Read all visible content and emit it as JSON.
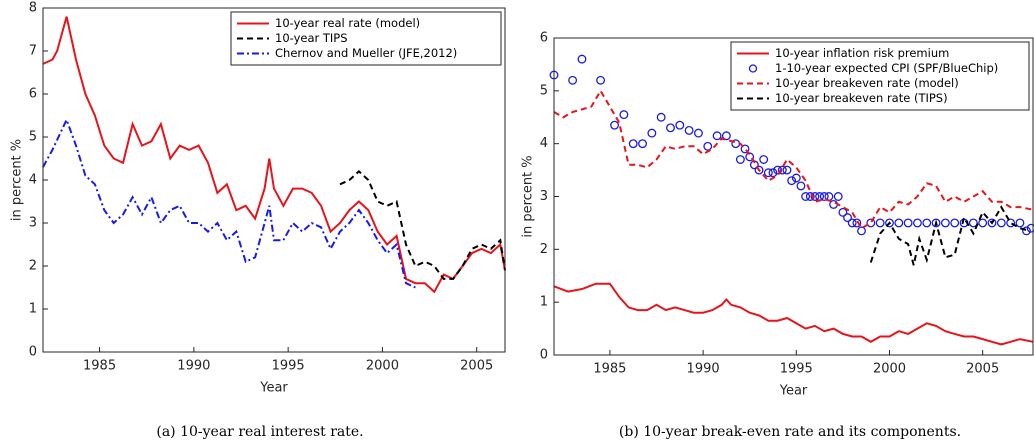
{
  "chart_data": [
    {
      "type": "line",
      "caption": "(a)  10-year real interest rate.",
      "xlabel": "Year",
      "ylabel": "in percent %",
      "xlim": [
        1982,
        2006.5
      ],
      "xticks": [
        1985,
        1990,
        1995,
        2000,
        2005
      ],
      "ylim": [
        0,
        8
      ],
      "yticks": [
        0,
        1,
        2,
        3,
        4,
        5,
        6,
        7,
        8
      ],
      "legend": "northeast",
      "series": [
        {
          "name": "10-year real rate (model)",
          "color": "#e8141b",
          "style": "solid",
          "x": [
            1982,
            1982.5,
            1982.75,
            1983.25,
            1983.75,
            1984.25,
            1984.75,
            1985.25,
            1985.75,
            1986.25,
            1986.75,
            1987.25,
            1987.75,
            1988.25,
            1988.75,
            1989.25,
            1989.75,
            1990.25,
            1990.75,
            1991.25,
            1991.75,
            1992.25,
            1992.75,
            1993.25,
            1993.75,
            1994,
            1994.25,
            1994.75,
            1995.25,
            1995.75,
            1996.25,
            1996.75,
            1997.25,
            1997.75,
            1998.25,
            1998.75,
            1999.25,
            1999.75,
            2000.25,
            2000.75,
            2001.25,
            2001.75,
            2002.25,
            2002.75,
            2003.25,
            2003.75,
            2004.25,
            2004.75,
            2005.25,
            2005.75,
            2006.25,
            2006.5
          ],
          "values": [
            6.7,
            6.8,
            7.0,
            7.8,
            6.8,
            6.0,
            5.5,
            4.8,
            4.5,
            4.4,
            5.3,
            4.8,
            4.9,
            5.3,
            4.5,
            4.8,
            4.7,
            4.8,
            4.4,
            3.7,
            3.9,
            3.3,
            3.4,
            3.1,
            3.8,
            4.5,
            3.8,
            3.4,
            3.8,
            3.8,
            3.7,
            3.4,
            2.8,
            3.0,
            3.3,
            3.5,
            3.3,
            2.8,
            2.5,
            2.7,
            1.7,
            1.6,
            1.6,
            1.4,
            1.8,
            1.7,
            2.0,
            2.3,
            2.4,
            2.3,
            2.5,
            1.9
          ]
        },
        {
          "name": "10-year TIPS",
          "color": "#000000",
          "style": "dashed",
          "x": [
            1997.75,
            1998.25,
            1998.75,
            1999.25,
            1999.75,
            2000.25,
            2000.75,
            2001.25,
            2001.75,
            2002.25,
            2002.75,
            2003.25,
            2003.75,
            2004.25,
            2004.75,
            2005.25,
            2005.75,
            2006.25,
            2006.5
          ],
          "values": [
            3.9,
            4.0,
            4.2,
            4.0,
            3.5,
            3.4,
            3.5,
            2.5,
            2.0,
            2.1,
            2.0,
            1.7,
            1.7,
            2.0,
            2.4,
            2.5,
            2.4,
            2.6,
            1.9
          ]
        },
        {
          "name": "Chernov and Mueller (JFE,2012)",
          "color": "#1a1aeb",
          "style": "dashdot",
          "x": [
            1982,
            1982.5,
            1983.25,
            1983.75,
            1984.25,
            1984.75,
            1985.25,
            1985.75,
            1986.25,
            1986.75,
            1987.25,
            1987.75,
            1988.25,
            1988.75,
            1989.25,
            1989.75,
            1990.25,
            1990.75,
            1991.25,
            1991.75,
            1992.25,
            1992.75,
            1993.25,
            1993.75,
            1994,
            1994.25,
            1994.75,
            1995.25,
            1995.75,
            1996.25,
            1996.75,
            1997.25,
            1997.75,
            1998.25,
            1998.75,
            1999.25,
            1999.75,
            2000.25,
            2000.75,
            2001.25,
            2001.75
          ],
          "values": [
            4.3,
            4.7,
            5.4,
            4.8,
            4.1,
            3.9,
            3.3,
            3.0,
            3.2,
            3.6,
            3.2,
            3.6,
            3.0,
            3.3,
            3.4,
            3.0,
            3.0,
            2.8,
            3.0,
            2.6,
            2.8,
            2.1,
            2.2,
            3.0,
            3.4,
            2.6,
            2.6,
            3.0,
            2.8,
            3.0,
            2.9,
            2.4,
            2.8,
            3.0,
            3.3,
            3.0,
            2.6,
            2.3,
            2.5,
            1.6,
            1.5
          ]
        }
      ]
    },
    {
      "type": "line",
      "caption": "(b)  10-year break-even rate and its components.",
      "xlabel": "Year",
      "ylabel": "in percent %",
      "xlim": [
        1982,
        2007.7
      ],
      "xticks": [
        1985,
        1990,
        1995,
        2000,
        2005
      ],
      "ylim": [
        0,
        6
      ],
      "yticks": [
        0,
        1,
        2,
        3,
        4,
        5,
        6
      ],
      "legend": "northeast",
      "series": [
        {
          "name": "10-year inflation risk premium",
          "color": "#e8141b",
          "style": "solid",
          "x": [
            1982,
            1982.75,
            1983.5,
            1984.25,
            1985,
            1985.5,
            1986,
            1986.5,
            1987,
            1987.5,
            1988,
            1988.5,
            1989,
            1989.5,
            1990,
            1990.5,
            1991,
            1991.25,
            1991.5,
            1992,
            1992.5,
            1993,
            1993.5,
            1994,
            1994.5,
            1995,
            1995.5,
            1996,
            1996.5,
            1997,
            1997.5,
            1998,
            1998.5,
            1999,
            1999.5,
            2000,
            2000.5,
            2001,
            2001.5,
            2002,
            2002.5,
            2003,
            2003.5,
            2004,
            2004.5,
            2005,
            2005.5,
            2006,
            2006.5,
            2007,
            2007.7
          ],
          "values": [
            1.3,
            1.2,
            1.25,
            1.35,
            1.35,
            1.1,
            0.9,
            0.85,
            0.85,
            0.95,
            0.85,
            0.9,
            0.85,
            0.8,
            0.8,
            0.85,
            0.95,
            1.05,
            0.95,
            0.9,
            0.8,
            0.75,
            0.65,
            0.65,
            0.7,
            0.6,
            0.5,
            0.55,
            0.45,
            0.5,
            0.4,
            0.35,
            0.35,
            0.25,
            0.35,
            0.35,
            0.45,
            0.4,
            0.5,
            0.6,
            0.55,
            0.45,
            0.4,
            0.35,
            0.35,
            0.3,
            0.25,
            0.2,
            0.25,
            0.3,
            0.25
          ]
        },
        {
          "name": "1-10-year expected CPI (SPF/BlueChip)",
          "color": "#1a1aeb",
          "style": "markers",
          "x": [
            1982,
            1983,
            1983.5,
            1984.5,
            1985.25,
            1985.75,
            1986.25,
            1986.75,
            1987.25,
            1987.75,
            1988.25,
            1988.75,
            1989.25,
            1989.75,
            1990.25,
            1990.75,
            1991.25,
            1991.75,
            1992,
            1992.25,
            1992.5,
            1992.75,
            1993,
            1993.25,
            1993.5,
            1993.75,
            1994,
            1994.25,
            1994.5,
            1994.75,
            1995,
            1995.25,
            1995.5,
            1995.75,
            1996,
            1996.25,
            1996.5,
            1996.75,
            1997,
            1997.25,
            1997.5,
            1997.75,
            1998,
            1998.25,
            1998.5,
            1999,
            1999.5,
            2000,
            2000.5,
            2001,
            2001.5,
            2002,
            2002.5,
            2003,
            2003.5,
            2004,
            2004.5,
            2005,
            2005.5,
            2006,
            2006.5,
            2007,
            2007.35,
            2007.6
          ],
          "values": [
            5.3,
            5.2,
            5.6,
            5.2,
            4.35,
            4.55,
            4.0,
            4.0,
            4.2,
            4.5,
            4.3,
            4.35,
            4.25,
            4.2,
            3.95,
            4.15,
            4.15,
            4.0,
            3.7,
            3.9,
            3.75,
            3.6,
            3.5,
            3.7,
            3.45,
            3.45,
            3.5,
            3.5,
            3.5,
            3.3,
            3.35,
            3.2,
            3.0,
            3.0,
            3.0,
            3.0,
            3.0,
            3.0,
            2.85,
            3.0,
            2.7,
            2.6,
            2.5,
            2.5,
            2.35,
            2.5,
            2.5,
            2.5,
            2.5,
            2.5,
            2.5,
            2.5,
            2.5,
            2.5,
            2.5,
            2.5,
            2.5,
            2.5,
            2.5,
            2.5,
            2.5,
            2.5,
            2.35,
            2.4
          ]
        },
        {
          "name": "10-year breakeven rate (model)",
          "color": "#e8141b",
          "style": "dashed",
          "x": [
            1982,
            1982.5,
            1983,
            1984,
            1984.5,
            1985,
            1985.5,
            1986,
            1986.5,
            1987,
            1987.5,
            1988,
            1988.5,
            1989,
            1989.5,
            1990,
            1990.5,
            1991,
            1991.5,
            1992,
            1992.5,
            1993,
            1993.5,
            1994,
            1994.5,
            1995,
            1995.5,
            1996,
            1996.5,
            1997,
            1997.5,
            1998,
            1998.5,
            1999,
            1999.5,
            2000,
            2000.5,
            2001,
            2001.5,
            2002,
            2002.5,
            2003,
            2003.5,
            2004,
            2004.5,
            2005,
            2005.5,
            2006,
            2006.5,
            2007,
            2007.7
          ],
          "values": [
            4.6,
            4.5,
            4.6,
            4.7,
            5.0,
            4.7,
            4.4,
            3.6,
            3.6,
            3.55,
            3.7,
            3.95,
            3.9,
            3.95,
            3.95,
            3.8,
            3.9,
            4.1,
            4.05,
            4.0,
            3.8,
            3.5,
            3.3,
            3.4,
            3.7,
            3.55,
            3.3,
            2.9,
            2.95,
            2.9,
            2.8,
            2.7,
            2.4,
            2.5,
            2.8,
            2.7,
            2.9,
            2.85,
            3.0,
            3.25,
            3.2,
            2.9,
            3.0,
            2.9,
            3.0,
            3.1,
            2.9,
            2.9,
            2.8,
            2.8,
            2.75
          ]
        },
        {
          "name": "10-year breakeven rate (TIPS)",
          "color": "#000000",
          "style": "dashed",
          "x": [
            1999,
            1999.5,
            2000,
            2000.5,
            2001,
            2001.3,
            2001.6,
            2002,
            2002.5,
            2003,
            2003.5,
            2004,
            2004.5,
            2005,
            2005.5,
            2006,
            2006.5,
            2007,
            2007.5
          ],
          "values": [
            1.75,
            2.3,
            2.5,
            2.2,
            2.1,
            1.7,
            2.2,
            1.8,
            2.5,
            1.85,
            1.9,
            2.6,
            2.3,
            2.7,
            2.5,
            2.8,
            2.5,
            2.4,
            2.35
          ]
        }
      ]
    }
  ]
}
